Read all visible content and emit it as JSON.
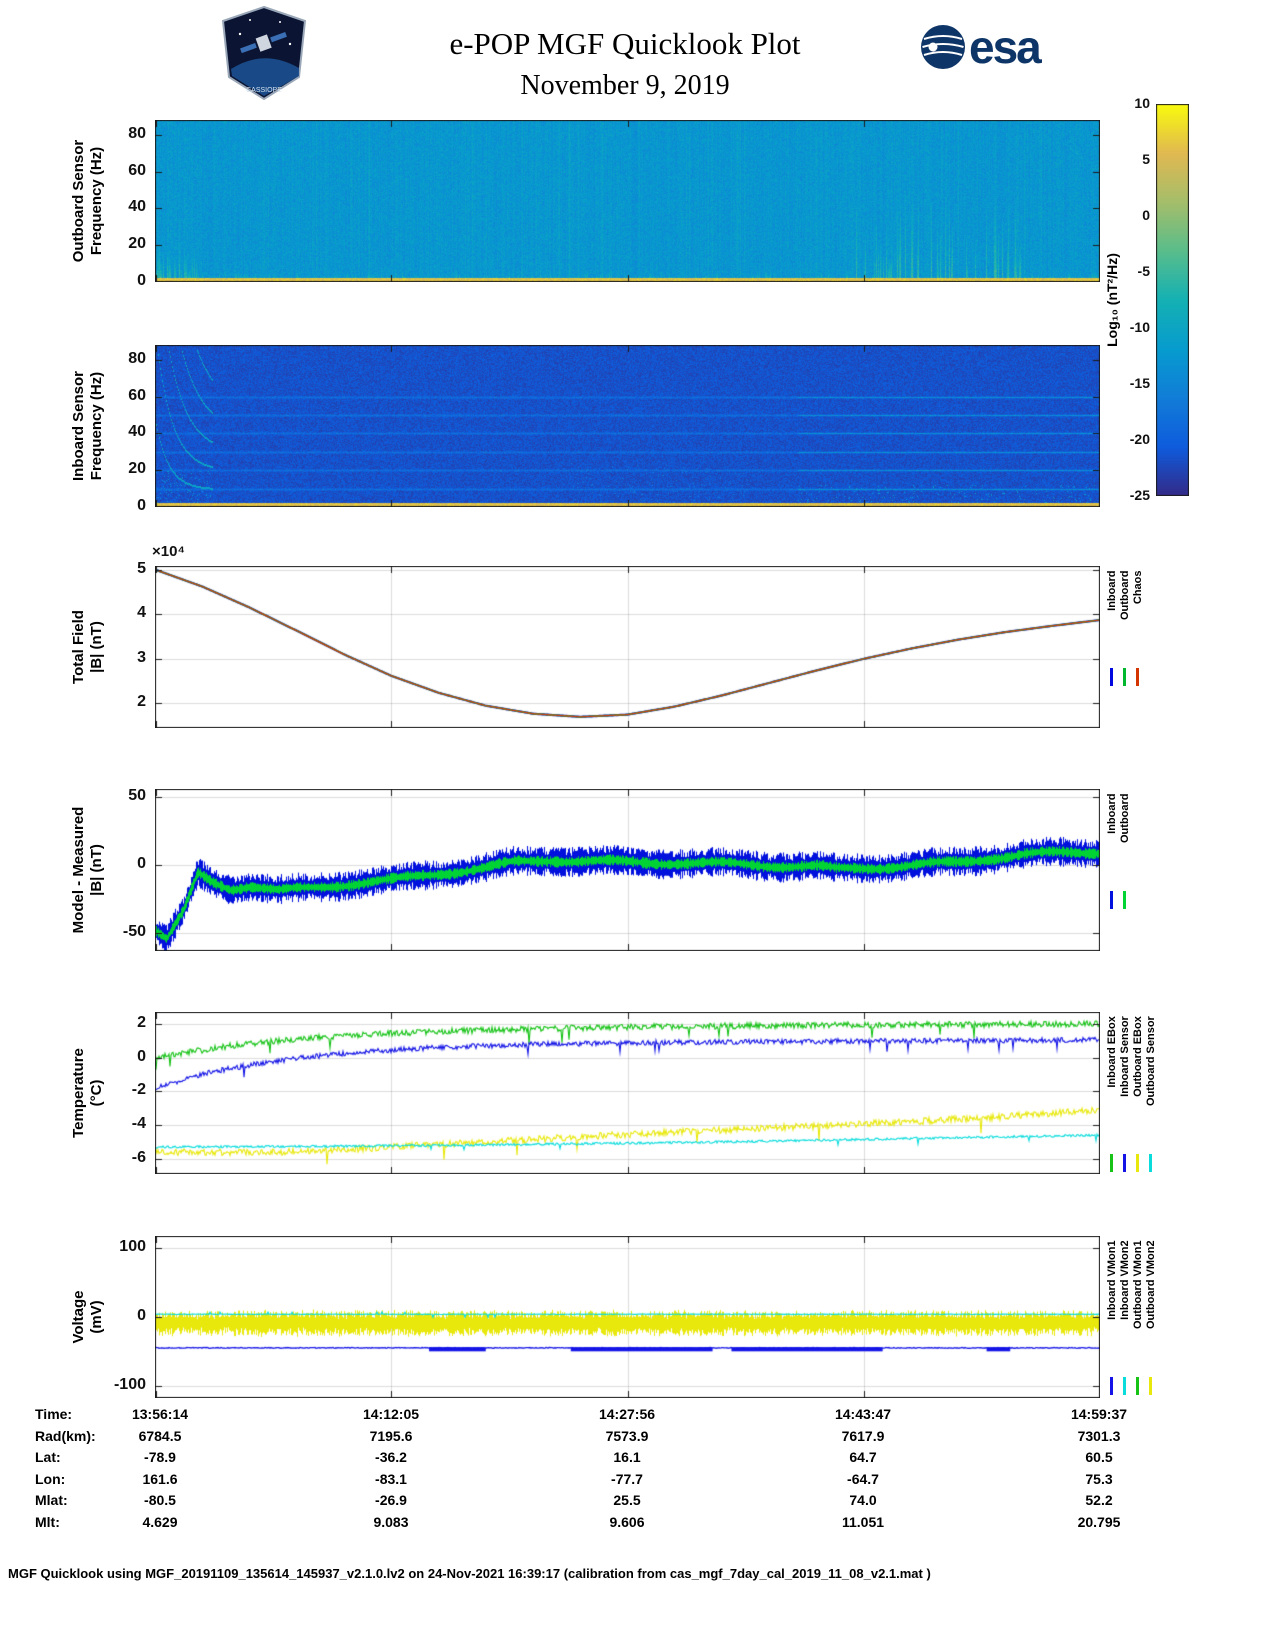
{
  "header": {
    "title": "e-POP MGF Quicklook Plot",
    "date": "November 9, 2019",
    "esa_label": "esa",
    "mission_label": "CASSIOPE"
  },
  "colorbar": {
    "label": "Log₁₀ (nT²/Hz)",
    "ticks": [
      10,
      5,
      0,
      -5,
      -10,
      -15,
      -20,
      -25
    ],
    "vmax": 10,
    "vmin": -25,
    "colormap": "parula"
  },
  "chart_data": [
    {
      "type": "heatmap",
      "render": "spectro_out",
      "ylabel": [
        "Outboard Sensor",
        "Frequency (Hz)"
      ],
      "yticks": [
        0,
        20,
        40,
        60,
        80
      ],
      "ylim": [
        0,
        88
      ],
      "xlim_times": [
        "13:56:14",
        "14:59:37"
      ],
      "style": {
        "background_level": -12.5,
        "noise": 2.0,
        "bottom_band_level": 6,
        "bottom_band_hz": 2.5
      }
    },
    {
      "type": "heatmap",
      "render": "spectro_in",
      "ylabel": [
        "Inboard Sensor",
        "Frequency (Hz)"
      ],
      "yticks": [
        0,
        20,
        40,
        60,
        80
      ],
      "ylim": [
        0,
        88
      ],
      "xlim_times": [
        "13:56:14",
        "14:59:37"
      ],
      "style": {
        "background_level": -21.5,
        "noise": 1.6,
        "interference_lines_hz": [
          10,
          20,
          30,
          40,
          50,
          60
        ],
        "bottom_band_level": 6,
        "bottom_band_hz": 2.5
      }
    },
    {
      "type": "line",
      "render": "total",
      "ylabel": [
        "Total Field",
        "|B| (nT)"
      ],
      "exponent_label": "×10⁴",
      "yticks": [
        2,
        3,
        4,
        5
      ],
      "ylim": [
        1.45,
        5.08
      ],
      "grid": true,
      "x": [
        0,
        0.05,
        0.1,
        0.15,
        0.2,
        0.25,
        0.3,
        0.35,
        0.4,
        0.45,
        0.5,
        0.55,
        0.6,
        0.65,
        0.7,
        0.75,
        0.8,
        0.85,
        0.9,
        0.95,
        1
      ],
      "shared_values_x1e4": [
        5.0,
        4.62,
        4.15,
        3.63,
        3.1,
        2.62,
        2.24,
        1.95,
        1.77,
        1.7,
        1.75,
        1.93,
        2.18,
        2.46,
        2.74,
        3.0,
        3.23,
        3.43,
        3.6,
        3.74,
        3.87
      ],
      "series": [
        {
          "name": "Inboard",
          "color": "#0008e0"
        },
        {
          "name": "Outboard",
          "color": "#00b830"
        },
        {
          "name": "Chaos",
          "color": "#d43500"
        }
      ]
    },
    {
      "type": "line",
      "render": "residual",
      "ylabel": [
        "Model - Measured",
        "|B| (nT)"
      ],
      "yticks": [
        -50,
        0,
        50
      ],
      "ylim": [
        -63,
        56
      ],
      "grid": true,
      "x": [
        0,
        0.012,
        0.03,
        0.045,
        0.06,
        0.08,
        0.1,
        0.13,
        0.16,
        0.2,
        0.25,
        0.3,
        0.35,
        0.38,
        0.42,
        0.46,
        0.5,
        0.55,
        0.6,
        0.65,
        0.7,
        0.72,
        0.75,
        0.8,
        0.85,
        0.88,
        0.92,
        0.96,
        1
      ],
      "mean": [
        -48,
        -55,
        -34,
        -6,
        -12,
        -17,
        -15,
        -19,
        -17,
        -14,
        -11,
        -6,
        -2,
        2,
        4,
        3,
        2,
        2,
        1,
        0,
        -1,
        -3,
        -2,
        0,
        2,
        5,
        8,
        9,
        10
      ],
      "series": [
        {
          "name": "Inboard",
          "color": "#0010dd",
          "amp": 8.5
        },
        {
          "name": "Outboard",
          "color": "#00d435",
          "amp": 3.2
        }
      ]
    },
    {
      "type": "line",
      "render": "multi",
      "ylabel": [
        "Temperature",
        "(°C)"
      ],
      "yticks": [
        -6,
        -4,
        -2,
        0,
        2
      ],
      "ylim": [
        -6.9,
        2.7
      ],
      "grid": true,
      "series": [
        {
          "name": "Inboard EBox",
          "color": "#17c317",
          "jitter": 0.18,
          "x": [
            0,
            0.04,
            0.08,
            0.13,
            0.2,
            0.3,
            0.4,
            0.5,
            0.65,
            0.8,
            1
          ],
          "values": [
            0.0,
            0.35,
            0.7,
            1.0,
            1.3,
            1.55,
            1.7,
            1.8,
            1.9,
            1.95,
            2.0
          ]
        },
        {
          "name": "Inboard Sensor",
          "color": "#1414e6",
          "jitter": 0.15,
          "x": [
            0,
            0.03,
            0.06,
            0.1,
            0.15,
            0.22,
            0.3,
            0.4,
            0.55,
            0.75,
            1
          ],
          "values": [
            -1.8,
            -1.3,
            -0.85,
            -0.45,
            -0.05,
            0.35,
            0.6,
            0.78,
            0.9,
            0.98,
            1.05
          ]
        },
        {
          "name": "Outboard EBox",
          "color": "#e8e80c",
          "jitter": 0.2,
          "x": [
            0,
            0.12,
            0.2,
            0.3,
            0.4,
            0.5,
            0.6,
            0.7,
            0.8,
            0.9,
            1
          ],
          "values": [
            -5.6,
            -5.62,
            -5.45,
            -5.15,
            -4.85,
            -4.55,
            -4.3,
            -4.05,
            -3.8,
            -3.5,
            -3.1
          ]
        },
        {
          "name": "Outboard Sensor",
          "color": "#0adcdc",
          "jitter": 0.07,
          "x": [
            0,
            0.2,
            0.4,
            0.6,
            0.8,
            1
          ],
          "values": [
            -5.3,
            -5.25,
            -5.15,
            -5.0,
            -4.8,
            -4.6
          ]
        }
      ]
    },
    {
      "type": "line",
      "render": "volt",
      "ylabel": [
        "Voltage",
        "(mV)"
      ],
      "yticks": [
        -100,
        0,
        100
      ],
      "ylim": [
        -118,
        118
      ],
      "grid": true,
      "series": [
        {
          "name": "Inboard VMon1",
          "color": "#1414e6",
          "level": -45
        },
        {
          "name": "Inboard VMon2",
          "color": "#0adcdc",
          "level": 4
        },
        {
          "name": "Outboard VMon1",
          "color": "#17c317",
          "level": -8
        },
        {
          "name": "Outboard VMon2",
          "color": "#e8e80c",
          "level": -9,
          "amp": 14
        }
      ]
    }
  ],
  "ephemeris": {
    "rows": [
      {
        "label": "Time:",
        "values": [
          "13:56:14",
          "14:12:05",
          "14:27:56",
          "14:43:47",
          "14:59:37"
        ]
      },
      {
        "label": "Rad(km):",
        "values": [
          "6784.5",
          "7195.6",
          "7573.9",
          "7617.9",
          "7301.3"
        ]
      },
      {
        "label": "Lat:",
        "values": [
          "-78.9",
          "-36.2",
          "16.1",
          "64.7",
          "60.5"
        ]
      },
      {
        "label": "Lon:",
        "values": [
          "161.6",
          "-83.1",
          "-77.7",
          "-64.7",
          "75.3"
        ]
      },
      {
        "label": "Mlat:",
        "values": [
          "-80.5",
          "-26.9",
          "25.5",
          "74.0",
          "52.2"
        ]
      },
      {
        "label": "Mlt:",
        "values": [
          "4.629",
          "9.083",
          "9.606",
          "11.051",
          "20.795"
        ]
      }
    ]
  },
  "footer": {
    "text": "MGF Quicklook using MGF_20191109_135614_145937_v2.1.0.lv2 on 24-Nov-2021 16:39:17 (calibration from cas_mgf_7day_cal_2019_11_08_v2.1.mat )"
  }
}
